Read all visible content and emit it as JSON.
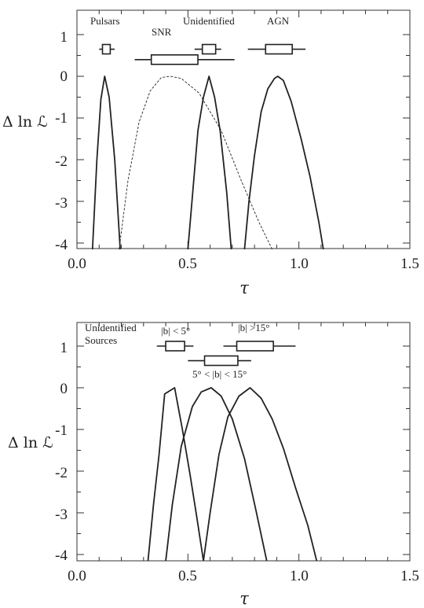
{
  "chart_data": [
    {
      "type": "line",
      "xlabel": "τ",
      "ylabel": "Δ ln ℒ",
      "xlim": [
        0.0,
        1.5
      ],
      "ylim": [
        -4.15,
        1.2
      ],
      "x_ticks": [
        "0.0",
        "0.5",
        "1.0",
        "1.5"
      ],
      "y_ticks": [
        "1",
        "0",
        "-1",
        "-2",
        "-3",
        "-4"
      ],
      "series": [
        {
          "name": "Pulsars",
          "style": "solid",
          "points": [
            [
              0.07,
              -4.15
            ],
            [
              0.09,
              -2.0
            ],
            [
              0.108,
              -0.55
            ],
            [
              0.125,
              0.0
            ],
            [
              0.145,
              -0.5
            ],
            [
              0.17,
              -2.0
            ],
            [
              0.195,
              -4.15
            ]
          ]
        },
        {
          "name": "SNR",
          "style": "dashed",
          "points": [
            [
              0.19,
              -4.15
            ],
            [
              0.23,
              -2.5
            ],
            [
              0.28,
              -1.1
            ],
            [
              0.33,
              -0.35
            ],
            [
              0.38,
              -0.03
            ],
            [
              0.42,
              0.0
            ],
            [
              0.47,
              -0.05
            ],
            [
              0.55,
              -0.4
            ],
            [
              0.65,
              -1.3
            ],
            [
              0.74,
              -2.5
            ],
            [
              0.82,
              -3.5
            ],
            [
              0.88,
              -4.15
            ]
          ]
        },
        {
          "name": "Unidentified",
          "style": "solid",
          "points": [
            [
              0.5,
              -4.15
            ],
            [
              0.515,
              -3.2
            ],
            [
              0.545,
              -1.3
            ],
            [
              0.57,
              -0.5
            ],
            [
              0.595,
              0.0
            ],
            [
              0.62,
              -0.5
            ],
            [
              0.645,
              -1.3
            ],
            [
              0.675,
              -2.8
            ],
            [
              0.695,
              -4.15
            ]
          ]
        },
        {
          "name": "AGN",
          "style": "solid",
          "points": [
            [
              0.755,
              -4.15
            ],
            [
              0.775,
              -3.0
            ],
            [
              0.8,
              -1.9
            ],
            [
              0.83,
              -0.85
            ],
            [
              0.86,
              -0.3
            ],
            [
              0.89,
              -0.05
            ],
            [
              0.905,
              0.0
            ],
            [
              0.93,
              -0.1
            ],
            [
              0.965,
              -0.6
            ],
            [
              1.01,
              -1.5
            ],
            [
              1.05,
              -2.4
            ],
            [
              1.09,
              -3.5
            ],
            [
              1.11,
              -4.15
            ]
          ]
        }
      ],
      "boxes": [
        {
          "label": "Pulsars",
          "y": 0.65,
          "whisker": [
            0.1,
            0.17
          ],
          "box": [
            0.115,
            0.15
          ]
        },
        {
          "label": "SNR",
          "y": 0.4,
          "whisker": [
            0.26,
            0.71
          ],
          "box": [
            0.335,
            0.545
          ]
        },
        {
          "label": "Unidentified",
          "y": 0.65,
          "whisker": [
            0.53,
            0.65
          ],
          "box": [
            0.565,
            0.625
          ]
        },
        {
          "label": "AGN",
          "y": 0.65,
          "whisker": [
            0.77,
            1.03
          ],
          "box": [
            0.85,
            0.97
          ]
        }
      ]
    },
    {
      "type": "line",
      "xlabel": "τ",
      "ylabel": "Δ ln ℒ",
      "xlim": [
        0.0,
        1.5
      ],
      "ylim": [
        -4.15,
        1.6
      ],
      "x_ticks": [
        "0.0",
        "0.5",
        "1.0",
        "1.5"
      ],
      "y_ticks": [
        "1",
        "0",
        "-1",
        "-2",
        "-3",
        "-4"
      ],
      "series": [
        {
          "name": "|b| < 5°",
          "style": "solid",
          "points": [
            [
              0.32,
              -4.15
            ],
            [
              0.345,
              -2.8
            ],
            [
              0.37,
              -1.6
            ],
            [
              0.395,
              -0.15
            ],
            [
              0.44,
              0.0
            ],
            [
              0.475,
              -1.0
            ],
            [
              0.51,
              -2.1
            ],
            [
              0.54,
              -3.1
            ],
            [
              0.57,
              -4.15
            ]
          ]
        },
        {
          "name": "5° < |b| < 15°",
          "style": "solid",
          "points": [
            [
              0.4,
              -4.15
            ],
            [
              0.43,
              -2.8
            ],
            [
              0.47,
              -1.4
            ],
            [
              0.52,
              -0.45
            ],
            [
              0.56,
              -0.1
            ],
            [
              0.605,
              0.0
            ],
            [
              0.65,
              -0.2
            ],
            [
              0.7,
              -0.75
            ],
            [
              0.755,
              -1.7
            ],
            [
              0.805,
              -2.9
            ],
            [
              0.855,
              -4.15
            ]
          ]
        },
        {
          "name": "|b| > 15°",
          "style": "solid",
          "points": [
            [
              0.57,
              -4.15
            ],
            [
              0.6,
              -3.0
            ],
            [
              0.64,
              -1.6
            ],
            [
              0.68,
              -0.7
            ],
            [
              0.73,
              -0.2
            ],
            [
              0.78,
              0.0
            ],
            [
              0.83,
              -0.25
            ],
            [
              0.88,
              -0.75
            ],
            [
              0.93,
              -1.45
            ],
            [
              0.985,
              -2.4
            ],
            [
              1.04,
              -3.3
            ],
            [
              1.08,
              -4.15
            ]
          ]
        }
      ],
      "boxes": [
        {
          "label": "|b| < 5°",
          "y": 1.0,
          "whisker": [
            0.36,
            0.525
          ],
          "box": [
            0.4,
            0.485
          ]
        },
        {
          "label": "5° < |b| < 15°",
          "y": 0.65,
          "whisker": [
            0.5,
            0.785
          ],
          "box": [
            0.575,
            0.725
          ]
        },
        {
          "label": "|b| >15°",
          "y": 1.0,
          "whisker": [
            0.66,
            0.985
          ],
          "box": [
            0.72,
            0.885
          ]
        }
      ]
    }
  ],
  "panel1": {
    "xlabel": "τ",
    "ylabel": "Δ ln ℒ",
    "x_ticks": [
      "0.0",
      "0.5",
      "1.0",
      "1.5"
    ],
    "y_ticks": [
      "1",
      "0",
      "-1",
      "-2",
      "-3",
      "-4"
    ],
    "labels": {
      "pulsars": "Pulsars",
      "snr": "SNR",
      "unidentified": "Unidentified",
      "agn": "AGN"
    }
  },
  "panel2": {
    "xlabel": "τ",
    "ylabel": "Δ ln ℒ",
    "x_ticks": [
      "0.0",
      "0.5",
      "1.0",
      "1.5"
    ],
    "y_ticks": [
      "1",
      "0",
      "-1",
      "-2",
      "-3",
      "-4"
    ],
    "labels": {
      "unidentified_sources_1": "Unidentified",
      "unidentified_sources_2": "Sources",
      "b_lt_5": "|b| < 5°",
      "b_gt_15": "|b| >15°",
      "b_mid": "5° < |b| < 15°"
    }
  }
}
